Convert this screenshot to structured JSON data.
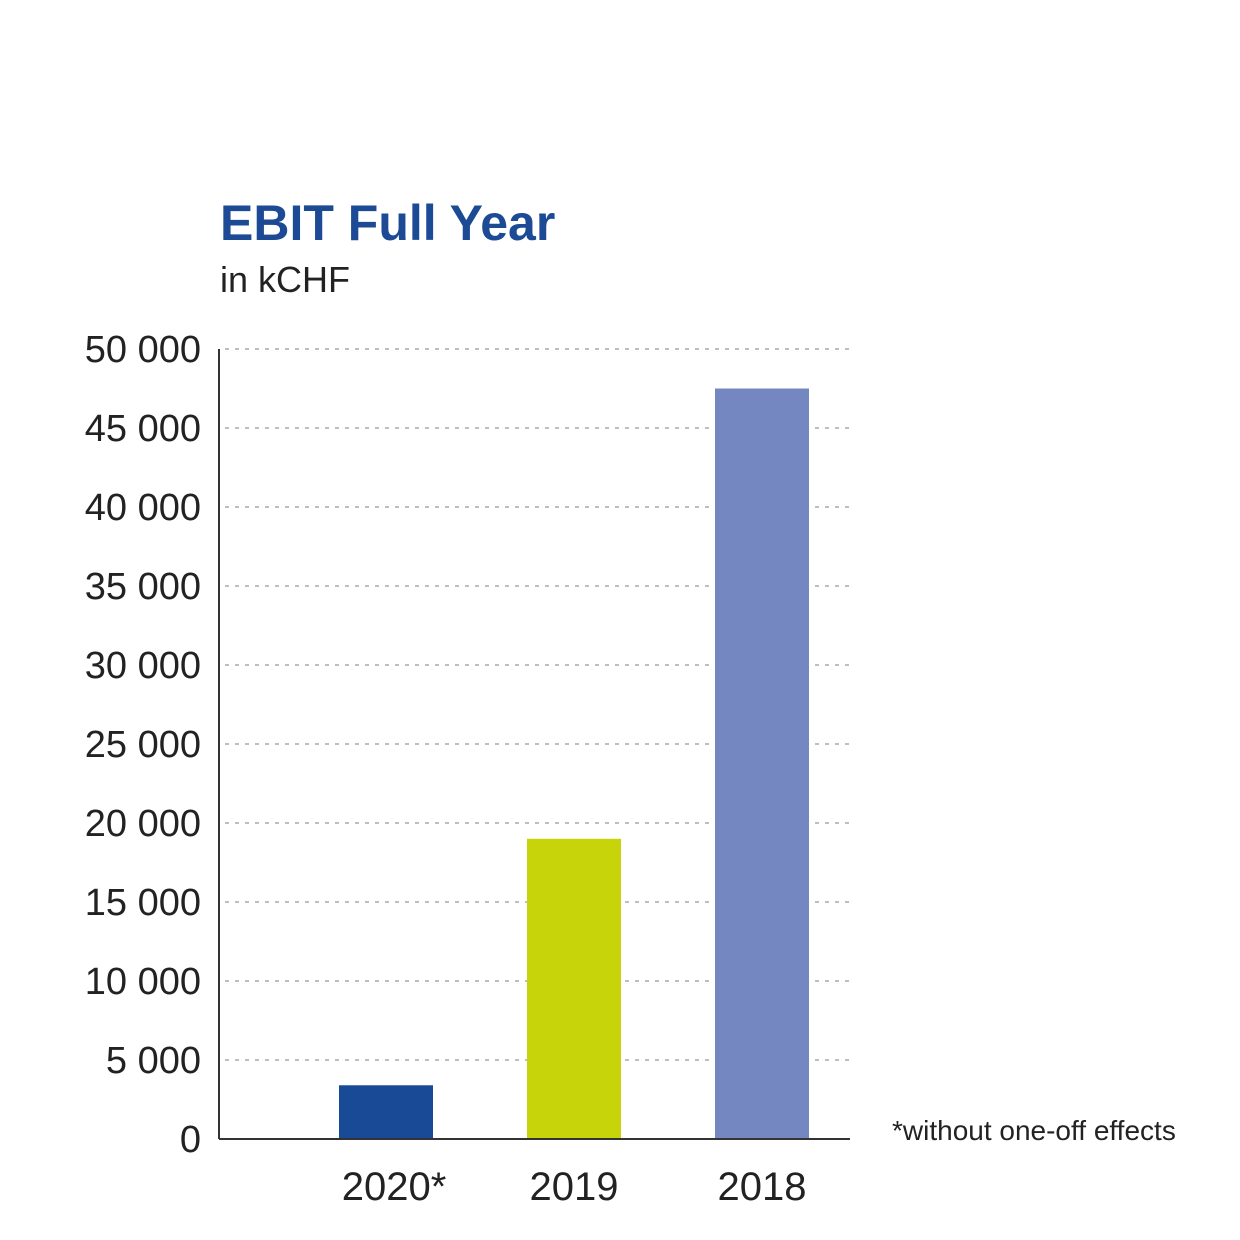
{
  "chart_data": {
    "type": "bar",
    "title": "EBIT  Full Year",
    "subtitle": "in kCHF",
    "categories": [
      "2020*",
      "2019",
      "2018"
    ],
    "values": [
      3400,
      19000,
      47500
    ],
    "colors": [
      "#184a95",
      "#c8d40a",
      "#7587c0"
    ],
    "ylim": [
      0,
      50000
    ],
    "yticks": [
      0,
      5000,
      10000,
      15000,
      20000,
      25000,
      30000,
      35000,
      40000,
      45000,
      50000
    ],
    "ytick_labels": [
      "0",
      "5 000",
      "10 000",
      "15 000",
      "20 000",
      "25 000",
      "30 000",
      "35 000",
      "40 000",
      "45 000",
      "50 000"
    ],
    "grid": true,
    "footnote": "*without one-off effects"
  },
  "colors": {
    "title": "#1c4a94",
    "text": "#222222",
    "grid": "#a9a9a9",
    "axis": "#333333"
  }
}
